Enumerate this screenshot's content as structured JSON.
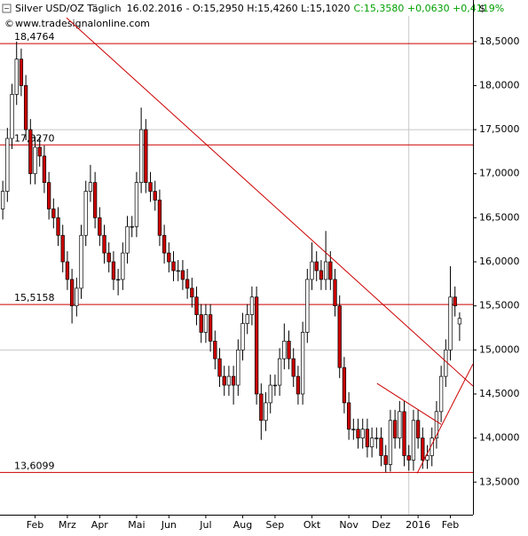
{
  "chart_data": {
    "type": "candlestick",
    "title": "Silver USD/OZ Täglich",
    "date": "16.02.2016",
    "ohlc_text": "- O:15,2950 H:15,4260 L:15,1020",
    "change_text": "C:15,3580 +0,0630 +0,4119%",
    "change_color": "#00a000",
    "source": "www.tradesignalonline.com",
    "currency": "$",
    "up_color": "#ffffff",
    "down_color": "#cc0000",
    "xlim": [
      -0.6,
      101.9
    ],
    "ylim": [
      13.13,
      18.79
    ],
    "yticks": [
      {
        "value": 13.5,
        "label": "13,5000"
      },
      {
        "value": 14,
        "label": "14,0000"
      },
      {
        "value": 14.5,
        "label": "14,5000"
      },
      {
        "value": 15,
        "label": "15,0000"
      },
      {
        "value": 15.5,
        "label": "15,5000"
      },
      {
        "value": 16,
        "label": "16,0000"
      },
      {
        "value": 16.5,
        "label": "16,5000"
      },
      {
        "value": 17,
        "label": "17,0000"
      },
      {
        "value": 17.5,
        "label": "17,5000"
      },
      {
        "value": 18,
        "label": "18,0000"
      },
      {
        "value": 18.5,
        "label": "18,5000"
      }
    ],
    "xticks": [
      {
        "value": 7,
        "label": "Feb"
      },
      {
        "value": 14,
        "label": "Mrz"
      },
      {
        "value": 21,
        "label": "Apr"
      },
      {
        "value": 29,
        "label": "Mai"
      },
      {
        "value": 36,
        "label": "Jun"
      },
      {
        "value": 44,
        "label": "Jul"
      },
      {
        "value": 52,
        "label": "Aug"
      },
      {
        "value": 59,
        "label": "Sep"
      },
      {
        "value": 67,
        "label": "Okt"
      },
      {
        "value": 75,
        "label": "Nov"
      },
      {
        "value": 82,
        "label": "Dez"
      },
      {
        "value": 90,
        "label": "2016"
      },
      {
        "value": 97,
        "label": "Feb"
      }
    ],
    "grid_y": [
      17.5,
      15
    ],
    "grid_x": [
      88
    ],
    "levels": [
      {
        "value": 18.4764,
        "label": "18,4764"
      },
      {
        "value": 17.327,
        "label": "17,3270"
      },
      {
        "value": 15.5158,
        "label": "15,5158"
      },
      {
        "value": 13.6099,
        "label": "13,6099"
      }
    ],
    "level_color": "#cc0000",
    "trendlines": [
      {
        "x": [
          13.8,
          101.9
        ],
        "y": [
          18.77,
          14.59
        ]
      },
      {
        "x": [
          81.1,
          95
        ],
        "y": [
          14.62,
          14.155
        ]
      },
      {
        "x": [
          89.8,
          101.9
        ],
        "y": [
          13.6,
          14.84
        ]
      }
    ],
    "open": [
      16.6,
      16.8,
      17.4,
      17.9,
      18.3,
      18.0,
      17.5,
      17.0,
      17.3,
      17.2,
      16.9,
      16.6,
      16.5,
      16.3,
      16.0,
      15.8,
      15.5,
      15.7,
      16.3,
      16.8,
      16.9,
      16.5,
      16.3,
      16.1,
      16.0,
      15.8,
      15.8,
      16.1,
      16.4,
      16.4,
      16.9,
      17.5,
      16.9,
      16.8,
      16.7,
      16.3,
      16.1,
      16.0,
      15.9,
      15.9,
      15.8,
      15.7,
      15.6,
      15.4,
      15.2,
      15.4,
      15.1,
      14.9,
      14.7,
      14.6,
      14.7,
      14.6,
      15.0,
      15.3,
      15.4,
      15.6,
      14.5,
      14.2,
      14.4,
      14.6,
      14.6,
      14.9,
      15.1,
      14.9,
      14.7,
      14.5,
      15.2,
      15.8,
      16.0,
      15.9,
      15.8,
      16.0,
      15.8,
      15.5,
      14.8,
      14.4,
      14.1,
      14.1,
      14.0,
      14.1,
      13.9,
      14.0,
      14.0,
      13.8,
      13.7,
      14.2,
      14.0,
      14.3,
      13.8,
      13.75,
      14.2,
      14.0,
      13.75,
      13.8,
      14.0,
      14.3,
      14.7,
      15.0,
      15.6,
      15.295
    ],
    "high": [
      16.92,
      17.52,
      18.02,
      18.5,
      18.42,
      18.12,
      17.62,
      17.42,
      17.42,
      17.32,
      17.02,
      16.72,
      16.62,
      16.42,
      16.12,
      15.92,
      15.82,
      16.42,
      16.92,
      17.1,
      17.02,
      16.62,
      16.42,
      16.22,
      16.12,
      15.92,
      16.22,
      16.52,
      16.52,
      17.02,
      17.75,
      17.62,
      17.02,
      16.92,
      16.82,
      16.42,
      16.22,
      16.12,
      16.02,
      16.02,
      15.92,
      15.82,
      15.72,
      15.52,
      15.52,
      15.52,
      15.22,
      15.02,
      14.82,
      14.82,
      14.82,
      15.12,
      15.42,
      15.52,
      15.72,
      15.72,
      14.62,
      14.52,
      14.72,
      14.72,
      15.02,
      15.3,
      15.22,
      15.02,
      14.82,
      15.32,
      15.92,
      16.22,
      16.12,
      16.02,
      16.35,
      16.12,
      15.92,
      15.62,
      14.92,
      14.52,
      14.22,
      14.22,
      14.22,
      14.22,
      14.12,
      14.12,
      14.12,
      13.92,
      14.32,
      14.32,
      14.42,
      14.42,
      13.92,
      14.32,
      14.32,
      14.12,
      13.92,
      14.12,
      14.42,
      14.82,
      15.12,
      15.95,
      15.72,
      15.426
    ],
    "low": [
      16.48,
      16.68,
      17.28,
      17.78,
      17.88,
      17.38,
      16.88,
      16.88,
      17.08,
      16.78,
      16.48,
      16.38,
      16.18,
      15.88,
      15.68,
      15.3,
      15.38,
      15.58,
      16.18,
      16.68,
      16.38,
      16.18,
      15.98,
      15.88,
      15.68,
      15.62,
      15.68,
      15.98,
      16.28,
      16.28,
      16.78,
      16.78,
      16.68,
      16.58,
      16.18,
      15.98,
      15.88,
      15.78,
      15.78,
      15.68,
      15.58,
      15.48,
      15.28,
      15.08,
      15.08,
      14.98,
      14.78,
      14.58,
      14.48,
      14.48,
      14.38,
      14.48,
      14.88,
      15.18,
      15.28,
      14.38,
      13.98,
      14.08,
      14.28,
      14.48,
      14.48,
      14.78,
      14.78,
      14.58,
      14.38,
      14.38,
      15.08,
      15.68,
      15.78,
      15.68,
      15.68,
      15.68,
      15.38,
      14.68,
      14.28,
      13.98,
      13.98,
      13.88,
      13.88,
      13.78,
      13.78,
      13.88,
      13.68,
      13.61,
      13.62,
      13.88,
      13.88,
      13.68,
      13.63,
      13.63,
      13.88,
      13.65,
      13.65,
      13.68,
      13.88,
      14.18,
      14.58,
      14.88,
      15.38,
      15.102
    ],
    "close": [
      16.8,
      17.4,
      17.9,
      18.3,
      18.0,
      17.5,
      17.0,
      17.3,
      17.2,
      16.9,
      16.6,
      16.5,
      16.3,
      16.0,
      15.8,
      15.5,
      15.7,
      16.3,
      16.8,
      16.9,
      16.5,
      16.3,
      16.1,
      16.0,
      15.8,
      15.8,
      16.1,
      16.4,
      16.4,
      16.9,
      17.5,
      16.9,
      16.8,
      16.7,
      16.3,
      16.1,
      16.0,
      15.9,
      15.9,
      15.8,
      15.7,
      15.6,
      15.4,
      15.2,
      15.4,
      15.1,
      14.9,
      14.7,
      14.6,
      14.7,
      14.6,
      15.0,
      15.3,
      15.4,
      15.6,
      14.5,
      14.2,
      14.4,
      14.6,
      14.6,
      14.9,
      15.1,
      14.9,
      14.7,
      14.5,
      15.2,
      15.8,
      16.0,
      15.9,
      15.8,
      16.0,
      15.8,
      15.5,
      14.8,
      14.4,
      14.1,
      14.1,
      14.0,
      14.1,
      13.9,
      14.0,
      14.0,
      13.8,
      13.7,
      14.2,
      14.0,
      14.3,
      13.8,
      13.75,
      14.2,
      14.0,
      13.75,
      13.8,
      14.0,
      14.3,
      14.7,
      15.0,
      15.6,
      15.5,
      15.358
    ]
  }
}
